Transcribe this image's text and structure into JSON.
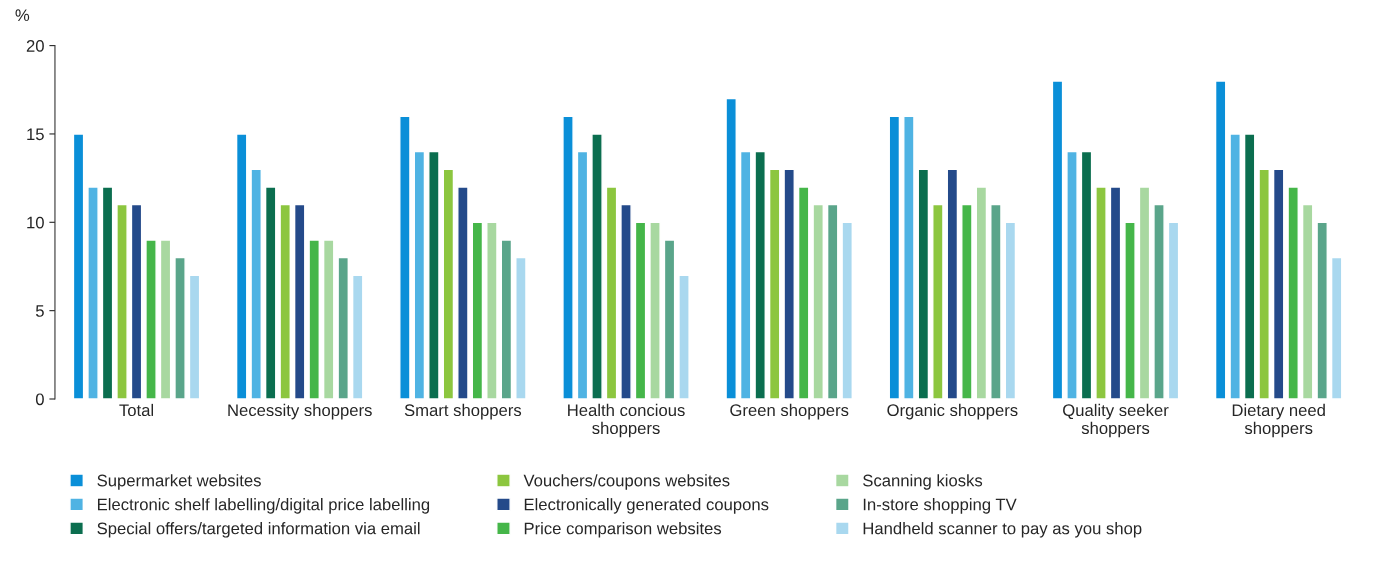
{
  "chart_data": {
    "type": "bar",
    "ylabel": "%",
    "categories": [
      "Total",
      "Necessity shoppers",
      "Smart shoppers",
      "Health concious\nshoppers",
      "Green shoppers",
      "Organic shoppers",
      "Quality seeker\nshoppers",
      "Dietary need\nshoppers"
    ],
    "series": [
      {
        "name": "Supermarket websites",
        "color": "#0a8fd8",
        "values": [
          15,
          15,
          16,
          16,
          17,
          16,
          18,
          18
        ]
      },
      {
        "name": "Electronic shelf labelling/digital price labelling",
        "color": "#4fb3e3",
        "values": [
          12,
          13,
          14,
          14,
          14,
          16,
          14,
          15
        ]
      },
      {
        "name": "Special offers/targeted information via email",
        "color": "#0b6e4f",
        "values": [
          12,
          12,
          14,
          15,
          14,
          13,
          14,
          15
        ]
      },
      {
        "name": "Vouchers/coupons websites",
        "color": "#8cc63f",
        "values": [
          11,
          11,
          13,
          12,
          13,
          11,
          12,
          13
        ]
      },
      {
        "name": "Electronically generated coupons",
        "color": "#244a8a",
        "values": [
          11,
          11,
          12,
          11,
          13,
          13,
          12,
          13
        ]
      },
      {
        "name": "Price comparison websites",
        "color": "#45b649",
        "values": [
          9,
          9,
          10,
          10,
          12,
          11,
          10,
          12
        ]
      },
      {
        "name": "Scanning kiosks",
        "color": "#a8d8a0",
        "values": [
          9,
          9,
          10,
          10,
          11,
          12,
          12,
          11
        ]
      },
      {
        "name": "In-store shopping TV",
        "color": "#5aa58a",
        "values": [
          8,
          8,
          9,
          9,
          11,
          11,
          11,
          10
        ]
      },
      {
        "name": "Handheld scanner to pay as you shop",
        "color": "#a9d8ef",
        "values": [
          7,
          7,
          8,
          7,
          10,
          10,
          10,
          8
        ]
      }
    ],
    "ylim": [
      0,
      20
    ],
    "yticks": [
      0,
      5,
      10,
      15,
      20
    ],
    "grid": false,
    "legend": "bottom"
  }
}
